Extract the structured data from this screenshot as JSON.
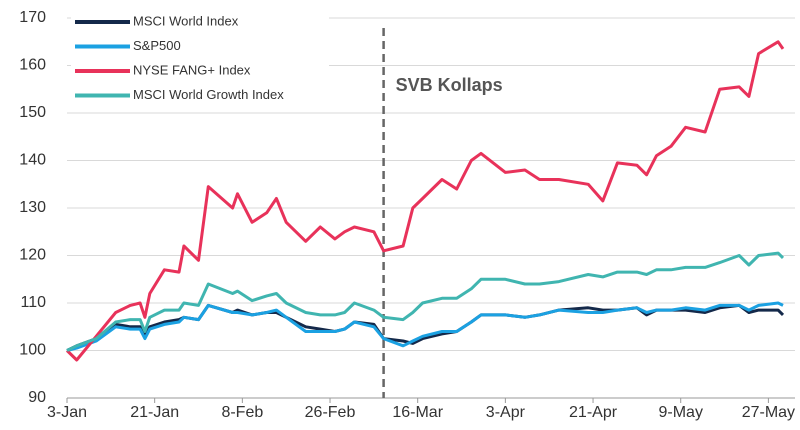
{
  "chart_data": {
    "type": "line",
    "x": [
      "3-Jan",
      "5-Jan",
      "9-Jan",
      "13-Jan",
      "16-Jan",
      "18-Jan",
      "19-Jan",
      "20-Jan",
      "23-Jan",
      "26-Jan",
      "27-Jan",
      "30-Jan",
      "1-Feb",
      "6-Feb",
      "7-Feb",
      "10-Feb",
      "13-Feb",
      "15-Feb",
      "17-Feb",
      "21-Feb",
      "24-Feb",
      "27-Feb",
      "1-Mar",
      "3-Mar",
      "7-Mar",
      "9-Mar",
      "13-Mar",
      "15-Mar",
      "17-Mar",
      "21-Mar",
      "24-Mar",
      "27-Mar",
      "29-Mar",
      "3-Apr",
      "7-Apr",
      "10-Apr",
      "14-Apr",
      "20-Apr",
      "23-Apr",
      "26-Apr",
      "30-Apr",
      "2-May",
      "4-May",
      "7-May",
      "10-May",
      "14-May",
      "17-May",
      "21-May",
      "23-May",
      "25-May",
      "29-May",
      "30-May"
    ],
    "series": [
      {
        "name": "MSCI World Index",
        "color": "#14294a",
        "values": [
          100,
          101,
          102.5,
          105.5,
          105,
          105,
          103.5,
          105,
          106,
          106.5,
          107,
          106.5,
          109.5,
          108,
          108.5,
          107.5,
          108,
          108,
          107,
          105,
          104.5,
          104,
          104.5,
          106,
          105.5,
          102.5,
          102,
          101.5,
          102.5,
          103.5,
          104,
          106,
          107.5,
          107.5,
          107,
          107.5,
          108.5,
          109,
          108.5,
          108.5,
          109,
          107.5,
          108.5,
          108.5,
          108.5,
          108,
          109,
          109.5,
          108,
          108.5,
          108.5,
          107.5
        ]
      },
      {
        "name": "S&P500",
        "color": "#1ba1e2",
        "values": [
          100,
          100.5,
          102,
          105,
          104.5,
          104.5,
          102.5,
          104.5,
          105.5,
          106,
          107,
          106.5,
          109.5,
          108,
          108,
          107.5,
          108,
          108.5,
          107,
          104,
          104,
          104,
          104.5,
          106,
          105,
          102.5,
          101,
          102,
          103,
          104,
          104,
          106,
          107.5,
          107.5,
          107,
          107.5,
          108.5,
          108,
          108,
          108.5,
          109,
          108,
          108.5,
          108.5,
          109,
          108.5,
          109.5,
          109.5,
          108.5,
          109.5,
          110,
          109.5
        ]
      },
      {
        "name": "NYSE FANG+ Index",
        "color": "#e8325a",
        "values": [
          100,
          98,
          103,
          108,
          109.5,
          110,
          107,
          112,
          117,
          116.5,
          122,
          119,
          134.5,
          130,
          133,
          127,
          129,
          132,
          127,
          123,
          126,
          123.5,
          125,
          126,
          125,
          121,
          122,
          130,
          132,
          136,
          134,
          140,
          141.5,
          137.5,
          138,
          136,
          136,
          135,
          131.5,
          139.5,
          139,
          137,
          141,
          143,
          147,
          146,
          155,
          155.5,
          153.5,
          162.5,
          165,
          163.5
        ]
      },
      {
        "name": "MSCI World Growth Index",
        "color": "#40b5b0",
        "values": [
          100,
          101,
          102.5,
          106,
          106.5,
          106.5,
          104,
          107,
          108.5,
          108.5,
          110,
          109.5,
          114,
          112,
          112.5,
          110.5,
          111.5,
          112,
          110,
          108,
          107.5,
          107.5,
          108,
          110,
          108.5,
          107,
          106.5,
          108,
          110,
          111,
          111,
          113,
          115,
          115,
          114,
          114,
          114.5,
          116,
          115.5,
          116.5,
          116.5,
          116,
          117,
          117,
          117.5,
          117.5,
          118.5,
          120,
          118,
          120,
          120.5,
          119.5
        ]
      }
    ],
    "xlim": [
      "3-Jan",
      "30-May"
    ],
    "xticks": [
      "3-Jan",
      "21-Jan",
      "8-Feb",
      "26-Feb",
      "16-Mar",
      "3-Apr",
      "21-Apr",
      "9-May",
      "27-May"
    ],
    "ylim": [
      90,
      170
    ],
    "yticks": [
      90,
      100,
      110,
      120,
      130,
      140,
      150,
      160,
      170
    ],
    "grid": true,
    "legend": "upper left",
    "annotations": [
      {
        "text": "SVB Kollaps",
        "x": "9-Mar"
      }
    ]
  }
}
